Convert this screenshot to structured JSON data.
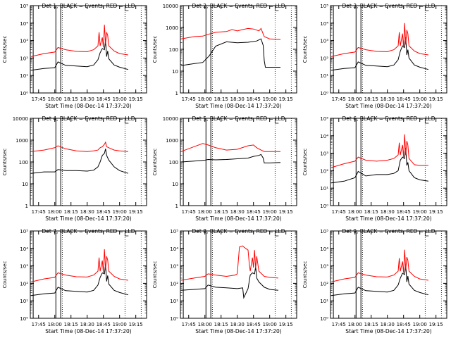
{
  "common": {
    "xlabel": "Start Time (08-Dec-14 17:37:20)",
    "ylabel": "Counts/sec",
    "xtick_labels": [
      "17:45",
      "18:00",
      "18:15",
      "18:30",
      "18:45",
      "19:00",
      "19:15"
    ],
    "xtick_minutes": [
      45,
      60,
      75,
      90,
      105,
      120,
      135
    ],
    "xlim_minutes": [
      37.33,
      145.0
    ],
    "solid_markers_minutes": [
      40,
      61,
      65.5
    ],
    "dotted_markers_minutes": [
      67,
      125,
      140
    ],
    "colors": {
      "events": "#000000",
      "lld": "#ff0000",
      "axes": "#000000",
      "background": "#ffffff"
    }
  },
  "chart_data": [
    {
      "type": "line",
      "title": "Det 1, BLACK = Events, RED = LLD",
      "xlabel": "Start Time (08-Dec-14 17:37:20)",
      "ylabel": "Counts/sec",
      "yscale": "log",
      "ylim": [
        1,
        100000
      ],
      "ytick_labels": [
        "10⁰",
        "10¹",
        "10²",
        "10³",
        "10⁴",
        "10⁵"
      ],
      "series": [
        {
          "name": "Events",
          "color": "#000000",
          "x": [
            38,
            50,
            60,
            63,
            70,
            80,
            90,
            96,
            100,
            102,
            104,
            106,
            107,
            108,
            109,
            110,
            115,
            120,
            128
          ],
          "y": [
            20,
            25,
            28,
            60,
            38,
            35,
            32,
            40,
            80,
            200,
            350,
            300,
            1000,
            120,
            250,
            90,
            40,
            30,
            22
          ]
        },
        {
          "name": "LLD",
          "color": "#ff0000",
          "x": [
            38,
            50,
            60,
            63,
            70,
            80,
            90,
            96,
            100,
            101,
            102,
            104,
            105,
            106,
            107,
            108,
            109,
            110,
            115,
            120,
            128
          ],
          "y": [
            120,
            180,
            220,
            400,
            300,
            240,
            230,
            300,
            500,
            3000,
            500,
            1500,
            400,
            8000,
            600,
            3000,
            2000,
            500,
            250,
            180,
            150
          ]
        }
      ]
    },
    {
      "type": "line",
      "title": "Det 2, BLACK = Events, RED = LLD",
      "xlabel": "Start Time (08-Dec-14 17:37:20)",
      "ylabel": "Counts/sec",
      "yscale": "log",
      "ylim": [
        1,
        10000
      ],
      "ytick_labels": [
        "1",
        "10",
        "100",
        "1000",
        "10000"
      ],
      "series": [
        {
          "name": "Events",
          "color": "#000000",
          "x": [
            38,
            50,
            58,
            64,
            70,
            80,
            90,
            100,
            108,
            112,
            114,
            115,
            116,
            125,
            130
          ],
          "y": [
            18,
            22,
            25,
            50,
            140,
            220,
            200,
            210,
            240,
            300,
            150,
            30,
            15,
            15,
            15
          ]
        },
        {
          "name": "LLD",
          "color": "#ff0000",
          "x": [
            38,
            50,
            58,
            64,
            70,
            80,
            85,
            90,
            95,
            100,
            105,
            110,
            112,
            115,
            120,
            130
          ],
          "y": [
            300,
            380,
            400,
            500,
            600,
            650,
            800,
            700,
            800,
            900,
            850,
            700,
            900,
            380,
            300,
            280
          ]
        }
      ]
    },
    {
      "type": "line",
      "title": "Det 3, BLACK = Events, RED = LLD",
      "xlabel": "Start Time (08-Dec-14 17:37:20)",
      "ylabel": "Counts/sec",
      "yscale": "log",
      "ylim": [
        1,
        100000
      ],
      "ytick_labels": [
        "10⁰",
        "10¹",
        "10²",
        "10³",
        "10⁴",
        "10⁵"
      ],
      "series": [
        {
          "name": "Events",
          "color": "#000000",
          "x": [
            38,
            50,
            60,
            63,
            70,
            80,
            90,
            96,
            100,
            102,
            104,
            106,
            107,
            108,
            109,
            110,
            115,
            120,
            128
          ],
          "y": [
            20,
            25,
            28,
            60,
            38,
            35,
            32,
            40,
            80,
            250,
            500,
            400,
            1500,
            150,
            300,
            100,
            40,
            30,
            22
          ]
        },
        {
          "name": "LLD",
          "color": "#ff0000",
          "x": [
            38,
            50,
            60,
            63,
            70,
            80,
            90,
            96,
            100,
            101,
            102,
            104,
            105,
            106,
            107,
            108,
            109,
            110,
            115,
            120,
            128
          ],
          "y": [
            120,
            180,
            220,
            400,
            300,
            240,
            230,
            300,
            500,
            3000,
            500,
            2500,
            400,
            10000,
            600,
            4000,
            2500,
            500,
            250,
            180,
            150
          ]
        }
      ]
    },
    {
      "type": "line",
      "title": "Det 4, BLACK = Events, RED = LLD",
      "xlabel": "Start Time (08-Dec-14 17:37:20)",
      "ylabel": "Counts/sec",
      "yscale": "log",
      "ylim": [
        1,
        10000
      ],
      "ytick_labels": [
        "1",
        "10",
        "100",
        "1000",
        "10000"
      ],
      "series": [
        {
          "name": "Events",
          "color": "#000000",
          "x": [
            38,
            50,
            60,
            63,
            70,
            80,
            90,
            96,
            100,
            102,
            104,
            106,
            107,
            108,
            110,
            115,
            120,
            128
          ],
          "y": [
            30,
            35,
            35,
            45,
            40,
            40,
            38,
            42,
            60,
            100,
            200,
            250,
            400,
            200,
            120,
            60,
            40,
            30
          ]
        },
        {
          "name": "LLD",
          "color": "#ff0000",
          "x": [
            38,
            50,
            60,
            63,
            70,
            80,
            90,
            96,
            100,
            102,
            104,
            106,
            107,
            108,
            110,
            115,
            120,
            128
          ],
          "y": [
            300,
            350,
            450,
            550,
            400,
            320,
            300,
            320,
            350,
            450,
            500,
            650,
            800,
            500,
            450,
            350,
            320,
            300
          ]
        }
      ]
    },
    {
      "type": "line",
      "title": "Det 5, BLACK = Events, RED = LLD",
      "xlabel": "Start Time (08-Dec-14 17:37:20)",
      "ylabel": "Counts/sec",
      "yscale": "log",
      "ylim": [
        1,
        10000
      ],
      "ytick_labels": [
        "1",
        "10",
        "100",
        "1000",
        "10000"
      ],
      "series": [
        {
          "name": "Events",
          "color": "#000000",
          "x": [
            38,
            50,
            60,
            63,
            70,
            80,
            90,
            100,
            105,
            110,
            112,
            114,
            115,
            120,
            130
          ],
          "y": [
            100,
            110,
            120,
            130,
            125,
            130,
            140,
            150,
            180,
            200,
            220,
            150,
            90,
            90,
            95
          ]
        },
        {
          "name": "LLD",
          "color": "#ff0000",
          "x": [
            38,
            50,
            58,
            63,
            70,
            80,
            90,
            100,
            105,
            108,
            112,
            115,
            120,
            130
          ],
          "y": [
            300,
            500,
            700,
            600,
            450,
            350,
            380,
            550,
            600,
            450,
            350,
            300,
            300,
            300
          ]
        }
      ]
    },
    {
      "type": "line",
      "title": "Det 6, BLACK = Events, RED = LLD",
      "xlabel": "Start Time (08-Dec-14 17:37:20)",
      "ylabel": "Counts/sec",
      "yscale": "log",
      "ylim": [
        1,
        100000
      ],
      "ytick_labels": [
        "10⁰",
        "10¹",
        "10²",
        "10³",
        "10⁴",
        "10⁵"
      ],
      "series": [
        {
          "name": "Events",
          "color": "#000000",
          "x": [
            38,
            50,
            60,
            63,
            70,
            80,
            90,
            96,
            100,
            102,
            104,
            106,
            107,
            108,
            109,
            110,
            115,
            120,
            128
          ],
          "y": [
            20,
            25,
            40,
            90,
            50,
            60,
            60,
            70,
            100,
            400,
            600,
            500,
            2000,
            200,
            300,
            100,
            40,
            30,
            25
          ]
        },
        {
          "name": "LLD",
          "color": "#ff0000",
          "x": [
            38,
            50,
            60,
            63,
            70,
            80,
            90,
            96,
            100,
            101,
            102,
            104,
            105,
            106,
            107,
            108,
            109,
            110,
            115,
            120,
            128
          ],
          "y": [
            150,
            250,
            350,
            600,
            400,
            350,
            400,
            500,
            800,
            4000,
            800,
            3000,
            600,
            12000,
            800,
            5000,
            3000,
            500,
            220,
            200,
            200
          ]
        }
      ]
    },
    {
      "type": "line",
      "title": "Det 7, BLACK = Events, RED = LLD",
      "xlabel": "Start Time (08-Dec-14 17:37:20)",
      "ylabel": "Counts/sec",
      "yscale": "log",
      "ylim": [
        1,
        100000
      ],
      "ytick_labels": [
        "10⁰",
        "10¹",
        "10²",
        "10³",
        "10⁴",
        "10⁵"
      ],
      "series": [
        {
          "name": "Events",
          "color": "#000000",
          "x": [
            38,
            50,
            60,
            63,
            70,
            80,
            90,
            96,
            100,
            102,
            104,
            106,
            107,
            108,
            109,
            110,
            115,
            120,
            128
          ],
          "y": [
            20,
            25,
            28,
            60,
            38,
            35,
            32,
            40,
            80,
            220,
            400,
            350,
            1200,
            130,
            280,
            90,
            40,
            30,
            22
          ]
        },
        {
          "name": "LLD",
          "color": "#ff0000",
          "x": [
            38,
            50,
            60,
            63,
            70,
            80,
            90,
            96,
            100,
            101,
            102,
            104,
            105,
            106,
            107,
            108,
            109,
            110,
            115,
            120,
            128
          ],
          "y": [
            120,
            180,
            220,
            400,
            300,
            240,
            230,
            300,
            500,
            3000,
            500,
            2000,
            400,
            9000,
            600,
            3500,
            2200,
            500,
            250,
            180,
            150
          ]
        }
      ]
    },
    {
      "type": "line",
      "title": "Det 8, BLACK = Events, RED = LLD",
      "xlabel": "Start Time (08-Dec-14 17:37:20)",
      "ylabel": "Counts/sec",
      "yscale": "log",
      "ylim": [
        1,
        100000
      ],
      "ytick_labels": [
        "10⁰",
        "10¹",
        "10²",
        "10³",
        "10⁴",
        "10⁵"
      ],
      "series": [
        {
          "name": "Events",
          "color": "#000000",
          "x": [
            38,
            50,
            60,
            63,
            70,
            80,
            90,
            95,
            96,
            100,
            102,
            104,
            106,
            107,
            108,
            110,
            115,
            120,
            128
          ],
          "y": [
            40,
            45,
            50,
            80,
            60,
            55,
            50,
            55,
            15,
            50,
            300,
            400,
            350,
            900,
            200,
            120,
            60,
            45,
            40
          ]
        },
        {
          "name": "LLD",
          "color": "#ff0000",
          "x": [
            38,
            50,
            60,
            63,
            70,
            80,
            88,
            90,
            92,
            95,
            96,
            100,
            101,
            102,
            104,
            105,
            106,
            107,
            108,
            110,
            115,
            120,
            128
          ],
          "y": [
            150,
            200,
            250,
            350,
            300,
            250,
            300,
            350,
            12000,
            14000,
            12000,
            8000,
            1500,
            500,
            3000,
            800,
            8000,
            700,
            3500,
            500,
            250,
            220,
            200
          ]
        }
      ]
    },
    {
      "type": "line",
      "title": "Det 9, BLACK = Events, RED = LLD",
      "xlabel": "Start Time (08-Dec-14 17:37:20)",
      "ylabel": "Counts/sec",
      "yscale": "log",
      "ylim": [
        1,
        100000
      ],
      "ytick_labels": [
        "10⁰",
        "10¹",
        "10²",
        "10³",
        "10⁴",
        "10⁵"
      ],
      "series": [
        {
          "name": "Events",
          "color": "#000000",
          "x": [
            38,
            50,
            60,
            63,
            70,
            80,
            90,
            96,
            100,
            102,
            104,
            106,
            107,
            108,
            109,
            110,
            115,
            120,
            128
          ],
          "y": [
            20,
            25,
            28,
            60,
            38,
            35,
            32,
            40,
            80,
            200,
            380,
            320,
            1100,
            120,
            260,
            90,
            40,
            30,
            22
          ]
        },
        {
          "name": "LLD",
          "color": "#ff0000",
          "x": [
            38,
            50,
            60,
            63,
            70,
            80,
            90,
            96,
            100,
            101,
            102,
            104,
            105,
            106,
            107,
            108,
            109,
            110,
            115,
            120,
            128
          ],
          "y": [
            120,
            180,
            220,
            400,
            300,
            240,
            230,
            300,
            500,
            2800,
            500,
            1800,
            400,
            8500,
            600,
            3200,
            2100,
            500,
            250,
            180,
            150
          ]
        }
      ]
    }
  ]
}
